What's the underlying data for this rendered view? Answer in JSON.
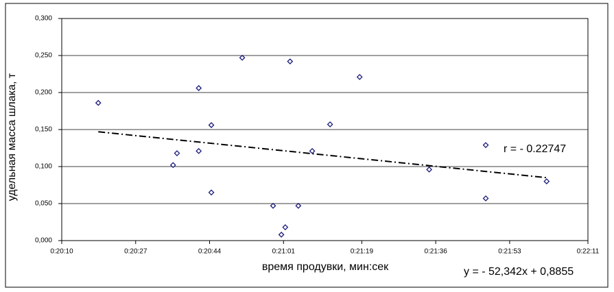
{
  "chart_data": {
    "type": "scatter",
    "x_label": "время продувки, мин:сек",
    "y_label": "удельная масса шлака, т",
    "series": [
      {
        "name": "points",
        "color": "#1a1a7a",
        "x": [
          1218.4,
          1235.6,
          1236.5,
          1241.5,
          1241.5,
          1244.4,
          1244.4,
          1251.5,
          1258.6,
          1260.5,
          1261.4,
          1262.5,
          1264.4,
          1267.6,
          1271.7,
          1278.5,
          1294.5,
          1307.5,
          1307.5,
          1321.5
        ],
        "values": [
          0.186,
          0.102,
          0.118,
          0.206,
          0.121,
          0.156,
          0.065,
          0.247,
          0.047,
          0.008,
          0.018,
          0.242,
          0.047,
          0.121,
          0.157,
          0.221,
          0.096,
          0.129,
          0.057,
          0.08
        ]
      }
    ],
    "trendline": {
      "x": [
        1218.4,
        1321.5
      ],
      "values": [
        0.147,
        0.085
      ],
      "color": "#000000"
    },
    "annotations": [
      "r = - 0.22747",
      "y = - 52,342x + 0,8855"
    ],
    "xlim": [
      1210,
      1331
    ],
    "xticks": [
      {
        "value": 1210,
        "label": "0:20:10"
      },
      {
        "value": 1227,
        "label": "0:20:27"
      },
      {
        "value": 1244,
        "label": "0:20:44"
      },
      {
        "value": 1261,
        "label": "0:21:01"
      },
      {
        "value": 1279,
        "label": "0:21:19"
      },
      {
        "value": 1296,
        "label": "0:21:36"
      },
      {
        "value": 1313,
        "label": "0:21:53"
      },
      {
        "value": 1331,
        "label": "0:22:11"
      }
    ],
    "ylim": [
      0,
      0.3
    ],
    "yticks": [
      {
        "value": 0,
        "label": "0,000"
      },
      {
        "value": 0.05,
        "label": "0,050"
      },
      {
        "value": 0.1,
        "label": "0,100"
      },
      {
        "value": 0.15,
        "label": "0,150"
      },
      {
        "value": 0.2,
        "label": "0,200"
      },
      {
        "value": 0.25,
        "label": "0,250"
      },
      {
        "value": 0.3,
        "label": "0,300"
      }
    ],
    "grid": true
  }
}
